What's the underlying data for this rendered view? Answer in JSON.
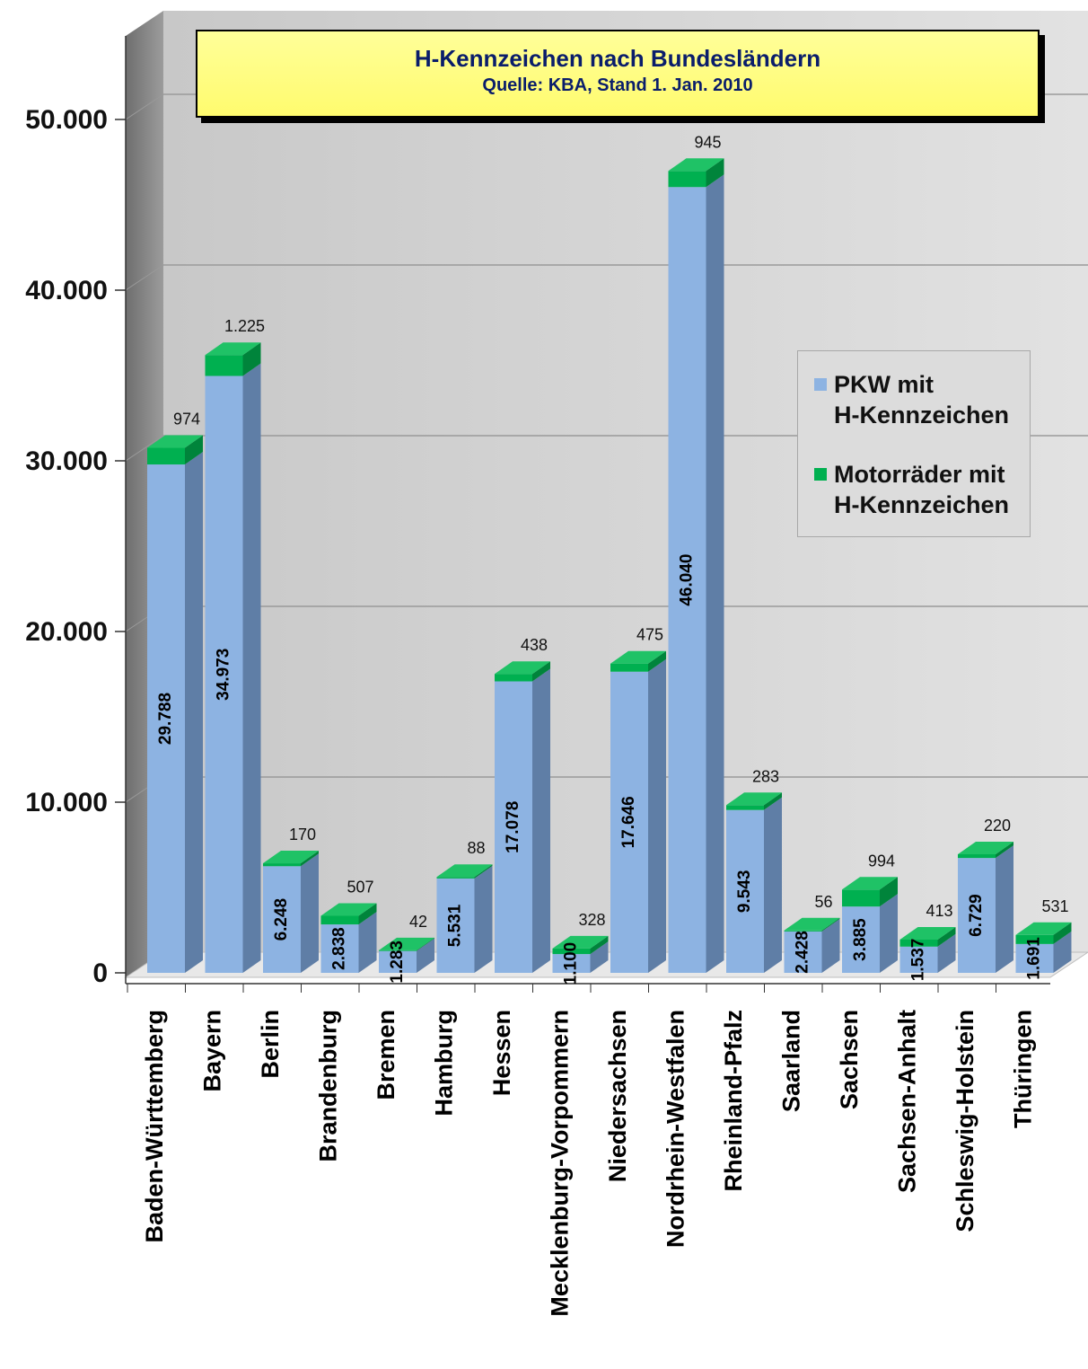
{
  "chart_data": {
    "type": "bar",
    "stacked": true,
    "title": "H-Kennzeichen nach Bundesländern",
    "subtitle": "Quelle: KBA, Stand 1. Jan. 2010",
    "categories": [
      "Baden-Württemberg",
      "Bayern",
      "Berlin",
      "Brandenburg",
      "Bremen",
      "Hamburg",
      "Hessen",
      "Mecklenburg-Vorpommern",
      "Niedersachsen",
      "Nordrhein-Westfalen",
      "Rheinland-Pfalz",
      "Saarland",
      "Sachsen",
      "Sachsen-Anhalt",
      "Schleswig-Holstein",
      "Thüringen"
    ],
    "series": [
      {
        "name": "PKW mit H-Kennzeichen",
        "color": "#8db3e2",
        "values": [
          29788,
          34973,
          6248,
          2838,
          1283,
          5531,
          17078,
          1100,
          17646,
          46040,
          9543,
          2428,
          3885,
          1537,
          6729,
          1691
        ],
        "labels": [
          "29.788",
          "34.973",
          "6.248",
          "2.838",
          "1.283",
          "5.531",
          "17.078",
          "1.100",
          "17.646",
          "46.040",
          "9.543",
          "2.428",
          "3.885",
          "1.537",
          "6.729",
          "1.691"
        ]
      },
      {
        "name": "Motorräder mit H-Kennzeichen",
        "color": "#00b050",
        "values": [
          974,
          1225,
          170,
          507,
          42,
          88,
          438,
          328,
          475,
          945,
          283,
          56,
          994,
          413,
          220,
          531
        ],
        "labels": [
          "974",
          "1.225",
          "170",
          "507",
          "42",
          "88",
          "438",
          "328",
          "475",
          "945",
          "283",
          "56",
          "994",
          "413",
          "220",
          "531"
        ]
      }
    ],
    "y_ticks": [
      0,
      10000,
      20000,
      30000,
      40000,
      50000
    ],
    "y_tick_labels": [
      "0",
      "10.000",
      "20.000",
      "30.000",
      "40.000",
      "50.000"
    ],
    "ylim": [
      0,
      55000
    ],
    "legend_position": "right",
    "grid": true
  },
  "legend": {
    "pkw_line1": "PKW mit",
    "pkw_line2": "H-Kennzeichen",
    "moto_line1": "Motorräder mit",
    "moto_line2": "H-Kennzeichen"
  }
}
